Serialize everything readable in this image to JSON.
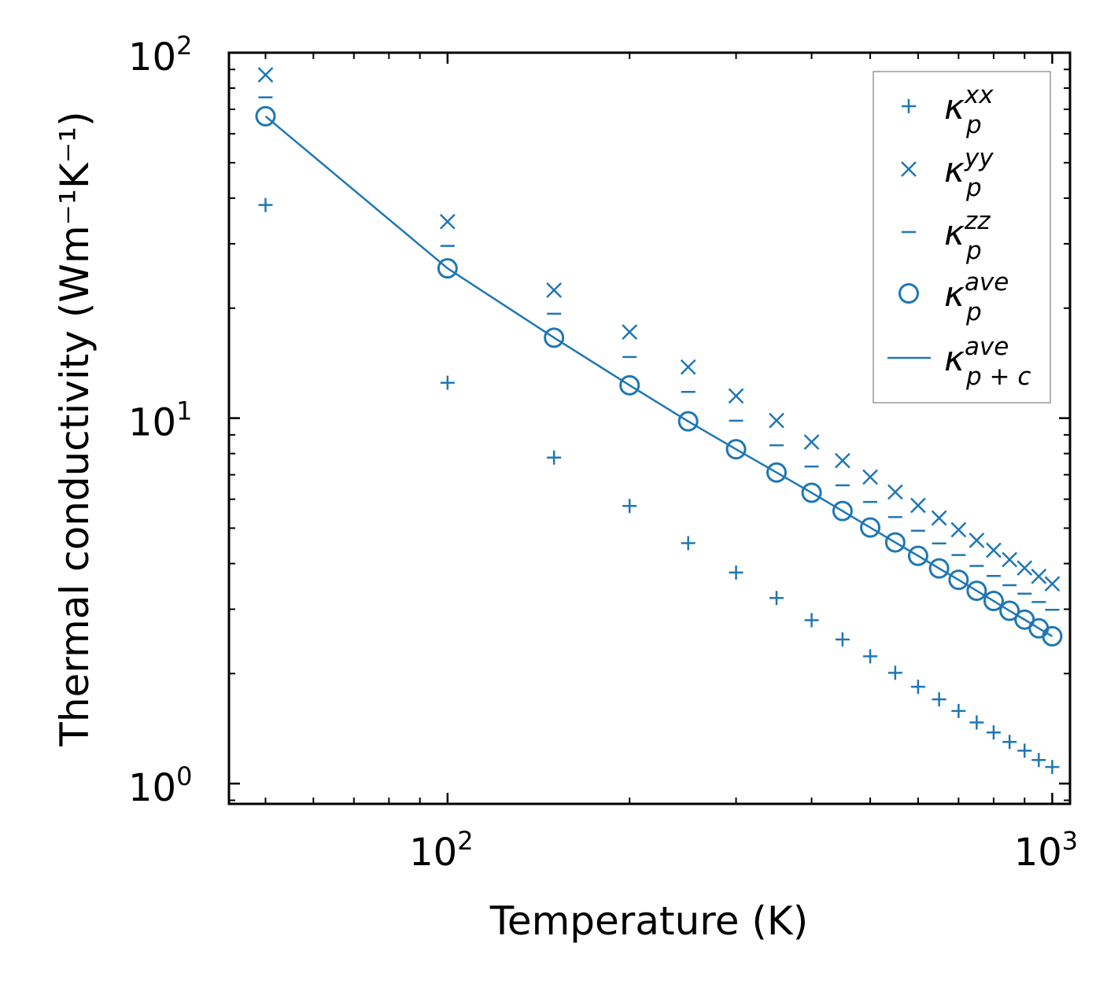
{
  "chart_data": {
    "type": "scatter",
    "title": "",
    "xlabel": "Temperature (K)",
    "ylabel": "Thermal conductivity (Wm⁻¹K⁻¹)",
    "xscale": "log",
    "yscale": "log",
    "xlim": [
      43.5,
      1070
    ],
    "ylim": [
      0.88,
      100
    ],
    "x_ticks": [
      {
        "base": "10",
        "exp": "2",
        "value": 100
      },
      {
        "base": "10",
        "exp": "3",
        "value": 1000
      }
    ],
    "y_ticks": [
      {
        "base": "10",
        "exp": "0",
        "value": 1
      },
      {
        "base": "10",
        "exp": "1",
        "value": 10
      },
      {
        "base": "10",
        "exp": "2",
        "value": 100
      }
    ],
    "x": [
      50,
      100,
      150,
      200,
      250,
      300,
      350,
      400,
      450,
      500,
      550,
      600,
      650,
      700,
      750,
      800,
      850,
      900,
      950,
      1000
    ],
    "series": [
      {
        "name": "kappa_p^xx",
        "label_main": "κ",
        "label_sub": "p",
        "label_sup": "xx",
        "marker": "plus",
        "values": [
          38.3,
          12.5,
          7.8,
          5.75,
          4.55,
          3.78,
          3.22,
          2.8,
          2.48,
          2.23,
          2.01,
          1.84,
          1.7,
          1.58,
          1.47,
          1.38,
          1.3,
          1.23,
          1.16,
          1.11
        ]
      },
      {
        "name": "kappa_p^yy",
        "label_main": "κ",
        "label_sub": "p",
        "label_sup": "yy",
        "marker": "x",
        "values": [
          87,
          34.5,
          22.4,
          17.2,
          13.8,
          11.5,
          9.85,
          8.6,
          7.65,
          6.9,
          6.28,
          5.77,
          5.33,
          4.95,
          4.63,
          4.35,
          4.1,
          3.89,
          3.69,
          3.52
        ]
      },
      {
        "name": "kappa_p^zz",
        "label_main": "κ",
        "label_sub": "p",
        "label_sup": "zz",
        "marker": "hline",
        "values": [
          75.5,
          29.6,
          19.3,
          14.7,
          11.8,
          9.84,
          8.43,
          7.37,
          6.55,
          5.9,
          5.36,
          4.92,
          4.54,
          4.22,
          3.94,
          3.7,
          3.49,
          3.31,
          3.14,
          2.99
        ]
      },
      {
        "name": "kappa_p^ave",
        "label_main": "κ",
        "label_sub": "p",
        "label_sup": "ave",
        "marker": "circle",
        "values": [
          67,
          25.7,
          16.6,
          12.3,
          9.8,
          8.22,
          7.1,
          6.25,
          5.57,
          5.02,
          4.57,
          4.2,
          3.88,
          3.61,
          3.37,
          3.16,
          2.97,
          2.81,
          2.66,
          2.53
        ]
      },
      {
        "name": "kappa_p+c^ave",
        "label_main": "κ",
        "label_sub": "p + c",
        "label_sup": "ave",
        "marker": "line",
        "values": [
          67,
          25.7,
          16.6,
          12.3,
          9.8,
          8.22,
          7.1,
          6.25,
          5.57,
          5.02,
          4.57,
          4.2,
          3.88,
          3.61,
          3.37,
          3.16,
          2.97,
          2.81,
          2.66,
          2.53
        ]
      }
    ],
    "legend_position": "top-right",
    "grid": false,
    "color": "#1f77b4"
  }
}
